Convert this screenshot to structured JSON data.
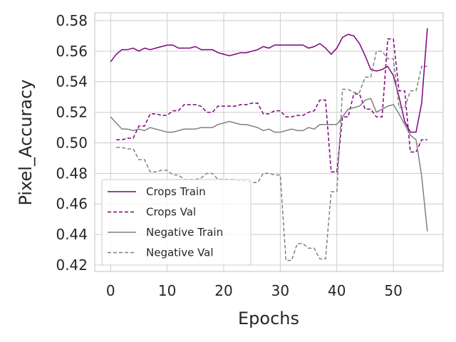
{
  "chart_data": {
    "type": "line",
    "x_label": "Epochs",
    "y_label": "Pixel_Accuracy",
    "x": [
      0,
      1,
      2,
      3,
      4,
      5,
      6,
      7,
      8,
      9,
      10,
      11,
      12,
      13,
      14,
      15,
      16,
      17,
      18,
      19,
      20,
      21,
      22,
      23,
      24,
      25,
      26,
      27,
      28,
      29,
      30,
      31,
      32,
      33,
      34,
      35,
      36,
      37,
      38,
      39,
      40,
      41,
      42,
      43,
      44,
      45,
      46,
      47,
      48,
      49,
      50,
      51,
      52,
      53,
      54,
      55,
      56
    ],
    "xlim": [
      -2.8,
      58.8
    ],
    "xticks": [
      0,
      10,
      20,
      30,
      40,
      50
    ],
    "ylim": [
      0.4158,
      0.5851
    ],
    "yticks": [
      0.42,
      0.44,
      0.46,
      0.48,
      {
        "value": 0.5,
        "label": "0.50"
      },
      0.52,
      0.54,
      0.56,
      0.58
    ],
    "grid": true,
    "legend": "lower left",
    "series": [
      {
        "name": "Crops Train",
        "color": "#800080",
        "dash": "solid",
        "values": [
          0.553,
          0.558,
          0.561,
          0.561,
          0.562,
          0.56,
          0.562,
          0.561,
          0.562,
          0.563,
          0.564,
          0.564,
          0.562,
          0.562,
          0.562,
          0.563,
          0.561,
          0.561,
          0.561,
          0.559,
          0.558,
          0.557,
          0.558,
          0.559,
          0.559,
          0.56,
          0.561,
          0.563,
          0.562,
          0.564,
          0.564,
          0.564,
          0.564,
          0.564,
          0.564,
          0.562,
          0.563,
          0.565,
          0.562,
          0.558,
          0.562,
          0.569,
          0.571,
          0.57,
          0.565,
          0.557,
          0.548,
          0.547,
          0.548,
          0.55,
          0.544,
          0.53,
          0.514,
          0.507,
          0.507,
          0.526,
          0.575
        ]
      },
      {
        "name": "Crops Val",
        "color": "#800080",
        "dash": "dashed",
        "values": [
          null,
          0.502,
          0.502,
          0.503,
          0.503,
          0.511,
          0.511,
          0.519,
          0.519,
          0.518,
          0.518,
          0.521,
          0.521,
          0.525,
          0.525,
          0.525,
          0.524,
          0.52,
          0.52,
          0.524,
          0.524,
          0.524,
          0.524,
          0.525,
          0.525,
          0.526,
          0.526,
          0.519,
          0.519,
          0.521,
          0.521,
          0.517,
          0.517,
          0.518,
          0.518,
          0.52,
          0.521,
          0.528,
          0.528,
          0.481,
          0.481,
          0.517,
          0.517,
          0.532,
          0.532,
          0.522,
          0.522,
          0.517,
          0.517,
          0.568,
          0.568,
          0.534,
          0.534,
          0.494,
          0.494,
          0.502,
          0.502
        ]
      },
      {
        "name": "Negative Train",
        "color": "#808080",
        "dash": "solid",
        "values": [
          0.517,
          0.513,
          0.509,
          0.509,
          0.508,
          0.509,
          0.508,
          0.51,
          0.509,
          0.508,
          0.507,
          0.507,
          0.508,
          0.509,
          0.509,
          0.509,
          0.51,
          0.51,
          0.51,
          0.512,
          0.513,
          0.514,
          0.513,
          0.512,
          0.512,
          0.511,
          0.51,
          0.508,
          0.509,
          0.507,
          0.507,
          0.508,
          0.509,
          0.508,
          0.508,
          0.51,
          0.509,
          0.512,
          0.512,
          0.512,
          0.512,
          0.517,
          0.522,
          0.523,
          0.524,
          0.528,
          0.529,
          0.52,
          0.522,
          0.524,
          0.525,
          0.519,
          0.512,
          0.505,
          0.502,
          0.478,
          0.442
        ]
      },
      {
        "name": "Negative Val",
        "color": "#808080",
        "dash": "dashed",
        "values": [
          null,
          0.497,
          0.497,
          0.496,
          0.496,
          0.489,
          0.489,
          0.481,
          0.481,
          0.482,
          0.482,
          0.479,
          0.479,
          0.476,
          0.476,
          0.476,
          0.477,
          0.48,
          0.48,
          0.476,
          0.476,
          0.476,
          0.476,
          0.475,
          0.475,
          0.474,
          0.474,
          0.48,
          0.48,
          0.479,
          0.479,
          0.423,
          0.423,
          0.434,
          0.434,
          0.431,
          0.431,
          0.424,
          0.424,
          0.468,
          0.468,
          0.535,
          0.535,
          0.533,
          0.533,
          0.543,
          0.543,
          0.56,
          0.56,
          0.555,
          0.555,
          0.523,
          0.523,
          0.534,
          0.534,
          0.55,
          0.55
        ]
      }
    ]
  }
}
